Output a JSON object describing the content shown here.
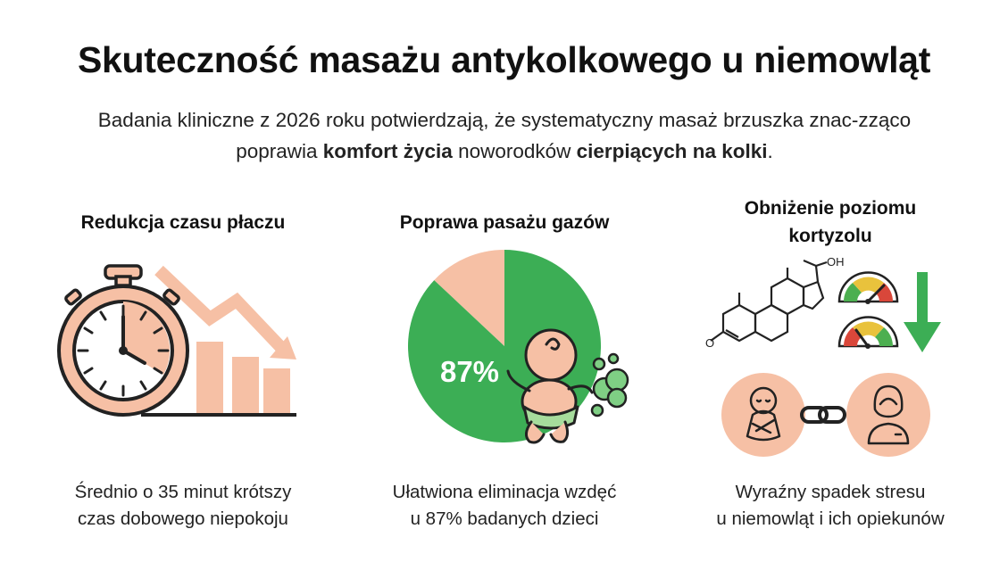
{
  "header": {
    "title": "Skuteczność masażu antykolkowego u niemowląt",
    "subtitle_parts": [
      {
        "text": "Badania kliniczne z 2026 roku potwierdzają, że systematyczny masaż brzuszka znac-zząco ",
        "bold": false
      },
      {
        "text": "poprawia ",
        "bold": false
      },
      {
        "text": "komfort życia",
        "bold": true
      },
      {
        "text": " noworodków ",
        "bold": false
      },
      {
        "text": "cierpiących na kolki",
        "bold": true
      },
      {
        "text": ".",
        "bold": false
      }
    ]
  },
  "sections": [
    {
      "title": "Redukcja czasu płaczu",
      "description_line1": "Średnio o 35 minut krótszy",
      "description_line2": "czas dobowego niepokoju",
      "icons": [
        "stopwatch-icon",
        "declining-bar-chart-icon"
      ]
    },
    {
      "title": "Poprawa pasażu gazów",
      "pie_value_label": "87%",
      "pie_value": 87,
      "description_line1": "Ułatwiona eliminacja wzdęć",
      "description_line2": "u 87% badanych dzieci",
      "icons": [
        "pie-chart",
        "baby-icon",
        "gas-cloud-icon"
      ]
    },
    {
      "title_line1": "Obniżenie poziomu",
      "title_line2": "kortyzolu",
      "molecule_label": "OH",
      "molecule_ketone_label": "O",
      "description_line1": "Wyraźny spadek stresu",
      "description_line2": "u niemowląt i ich opiekunów",
      "icons": [
        "cortisol-molecule-icon",
        "gauge-icon",
        "down-arrow-icon",
        "baby-icon",
        "link-icon",
        "caregiver-icon"
      ]
    }
  ],
  "colors": {
    "peach": "#f6c0a5",
    "peach_dark": "#e9a384",
    "green": "#3cae55",
    "outline": "#222222",
    "gauge_red": "#d9473a",
    "gauge_yellow": "#e9c23c",
    "gauge_green": "#4caf50"
  }
}
